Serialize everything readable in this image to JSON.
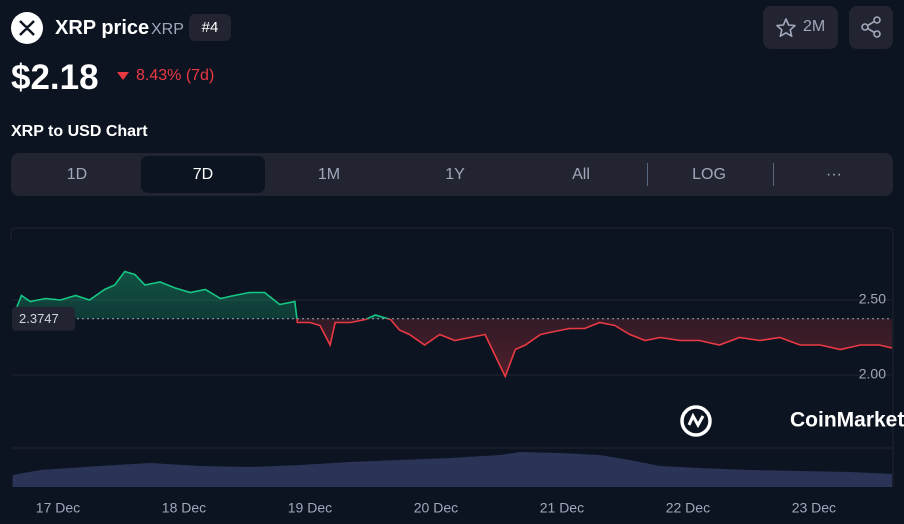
{
  "header": {
    "name": "XRP price",
    "symbol": "XRP",
    "rank": "#4",
    "watchlist": "2M",
    "price": "$2.18",
    "change": "8.43% (7d)",
    "chart_heading": "XRP to USD Chart"
  },
  "tabs": [
    "1D",
    "7D",
    "1M",
    "1Y",
    "All",
    "LOG",
    "···"
  ],
  "active_tab": "7D",
  "watermark": "CoinMarketCap",
  "chart_data": {
    "type": "line",
    "x": [
      16.64,
      16.71,
      16.78,
      16.9,
      17.02,
      17.14,
      17.25,
      17.37,
      17.45,
      17.53,
      17.61,
      17.69,
      17.81,
      17.93,
      18.05,
      18.17,
      18.29,
      18.4,
      18.52,
      18.64,
      18.76,
      18.88,
      18.9,
      19.0,
      19.08,
      19.16,
      19.2,
      19.32,
      19.44,
      19.52,
      19.64,
      19.71,
      19.79,
      19.91,
      20.03,
      20.15,
      20.27,
      20.39,
      20.47,
      20.55,
      20.63,
      20.71,
      20.83,
      20.94,
      21.06,
      21.18,
      21.3,
      21.42,
      21.54,
      21.66,
      21.78,
      21.94,
      22.09,
      22.25,
      22.41,
      22.57,
      22.73,
      22.89,
      23.05,
      23.21,
      23.37,
      23.52,
      23.62
    ],
    "values": [
      2.38,
      2.53,
      2.49,
      2.51,
      2.5,
      2.53,
      2.5,
      2.57,
      2.6,
      2.69,
      2.67,
      2.6,
      2.62,
      2.58,
      2.55,
      2.57,
      2.51,
      2.53,
      2.55,
      2.55,
      2.47,
      2.49,
      2.35,
      2.35,
      2.33,
      2.2,
      2.35,
      2.35,
      2.37,
      2.4,
      2.37,
      2.3,
      2.27,
      2.2,
      2.27,
      2.23,
      2.25,
      2.27,
      2.13,
      1.99,
      2.17,
      2.2,
      2.27,
      2.29,
      2.31,
      2.31,
      2.35,
      2.33,
      2.27,
      2.23,
      2.25,
      2.23,
      2.23,
      2.2,
      2.25,
      2.23,
      2.25,
      2.2,
      2.2,
      2.17,
      2.2,
      2.2,
      2.18
    ],
    "baseline": 2.3747,
    "up_color": "#16c784",
    "down_color": "#ea3943",
    "xlim": [
      16.635,
      23.62
    ],
    "ylim": [
      1.52,
      2.98
    ],
    "xticks": [
      {
        "value": 17,
        "label": "17 Dec"
      },
      {
        "value": 18,
        "label": "18 Dec"
      },
      {
        "value": 19,
        "label": "19 Dec"
      },
      {
        "value": 20,
        "label": "20 Dec"
      },
      {
        "value": 21,
        "label": "21 Dec"
      },
      {
        "value": 22,
        "label": "22 Dec"
      },
      {
        "value": 23,
        "label": "23 Dec"
      }
    ],
    "yticks": [
      {
        "value": 2.5,
        "label": "2.50"
      },
      {
        "value": 2.0,
        "label": "2.00"
      }
    ],
    "grid": true,
    "volume": {
      "x": [
        16.64,
        16.86,
        17.33,
        17.73,
        18.13,
        18.52,
        18.92,
        19.32,
        19.71,
        20.11,
        20.51,
        20.67,
        20.98,
        21.3,
        21.54,
        21.78,
        22.09,
        22.49,
        22.89,
        23.29,
        23.62
      ],
      "values": [
        12,
        17,
        21,
        24,
        21,
        20,
        22,
        25,
        27,
        29,
        32,
        35,
        34,
        32,
        27,
        21,
        19,
        17,
        16,
        15,
        13
      ],
      "ylim": [
        0,
        40
      ],
      "color": "#2b3356"
    }
  }
}
